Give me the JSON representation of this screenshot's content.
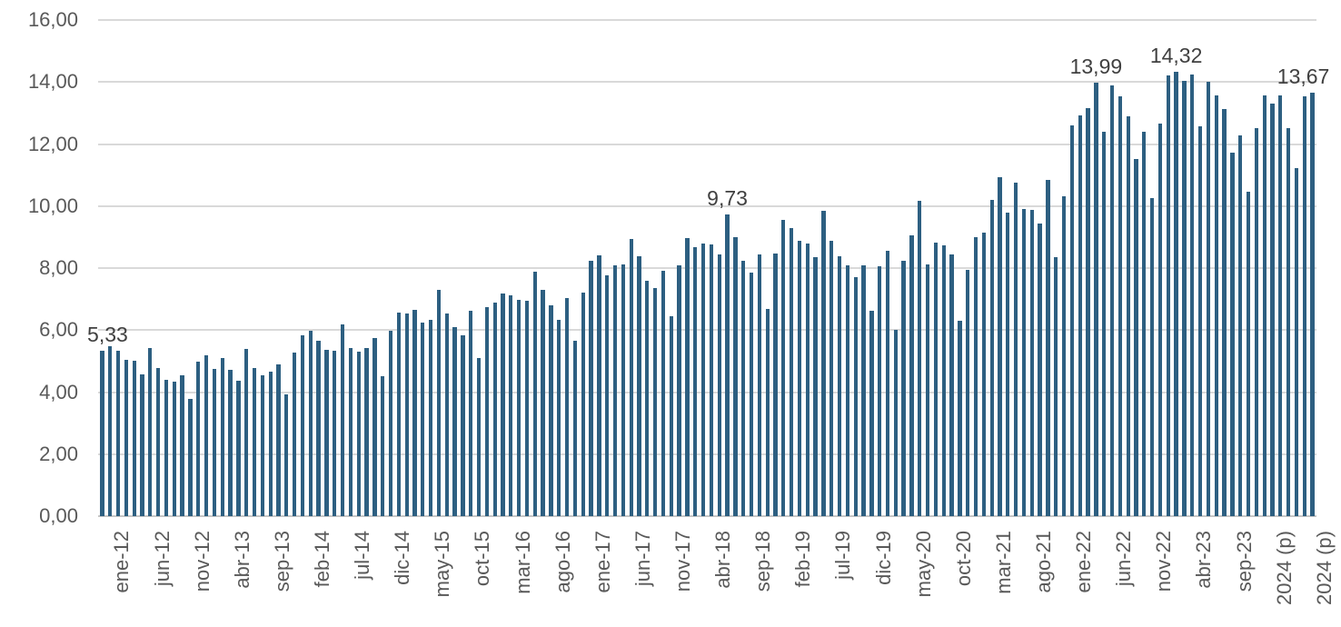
{
  "chart_data": {
    "type": "bar",
    "title": "",
    "xlabel": "",
    "ylabel": "",
    "ylim": [
      0,
      16
    ],
    "grid": true,
    "legend": "none",
    "y_ticks": [
      "0,00",
      "2,00",
      "4,00",
      "6,00",
      "8,00",
      "10,00",
      "12,00",
      "14,00",
      "16,00"
    ],
    "x_tick_step": 5,
    "x_tick_labels": [
      "ene-12",
      "jun-12",
      "nov-12",
      "abr-13",
      "sep-13",
      "feb-14",
      "jul-14",
      "dic-14",
      "may-15",
      "oct-15",
      "mar-16",
      "ago-16",
      "ene-17",
      "jun-17",
      "nov-17",
      "abr-18",
      "sep-18",
      "feb-19",
      "jul-19",
      "dic-19",
      "may-20",
      "oct-20",
      "mar-21",
      "ago-21",
      "ene-22",
      "jun-22",
      "nov-22",
      "abr-23",
      "sep-23",
      "2024 (p)",
      "2024 (p)"
    ],
    "values": [
      5.33,
      5.48,
      5.33,
      5.05,
      5.0,
      4.57,
      5.41,
      4.79,
      4.41,
      4.33,
      4.54,
      3.78,
      4.98,
      5.19,
      4.74,
      5.1,
      4.71,
      4.38,
      5.38,
      4.78,
      4.55,
      4.65,
      4.89,
      3.93,
      5.27,
      5.83,
      5.97,
      5.67,
      5.36,
      5.33,
      6.17,
      5.43,
      5.31,
      5.41,
      5.73,
      4.52,
      5.97,
      6.56,
      6.53,
      6.66,
      6.24,
      6.34,
      7.29,
      6.53,
      6.09,
      5.82,
      6.63,
      5.11,
      6.73,
      6.88,
      7.17,
      7.12,
      6.98,
      6.95,
      7.87,
      7.31,
      6.8,
      6.33,
      7.03,
      5.66,
      7.22,
      8.23,
      8.42,
      7.78,
      8.1,
      8.13,
      8.93,
      8.39,
      7.59,
      7.35,
      7.9,
      6.44,
      8.08,
      8.96,
      8.67,
      8.78,
      8.76,
      8.44,
      9.73,
      9.01,
      8.23,
      7.85,
      8.45,
      6.68,
      8.47,
      9.56,
      9.3,
      8.89,
      8.8,
      8.34,
      9.86,
      8.89,
      8.37,
      8.08,
      7.71,
      8.08,
      6.61,
      8.05,
      8.55,
      6.01,
      8.23,
      9.06,
      10.16,
      8.11,
      8.81,
      8.72,
      8.44,
      6.29,
      7.93,
      8.99,
      9.15,
      10.2,
      10.93,
      9.8,
      10.76,
      9.9,
      9.88,
      9.44,
      10.85,
      8.35,
      10.31,
      12.61,
      12.92,
      13.17,
      13.99,
      12.41,
      13.9,
      13.53,
      12.89,
      11.52,
      12.41,
      10.25,
      12.65,
      14.2,
      14.32,
      14.05,
      14.25,
      12.58,
      14.02,
      13.58,
      13.12,
      11.72,
      12.29,
      10.45,
      12.51,
      13.58,
      13.29,
      13.58,
      12.52,
      11.23,
      13.55,
      13.67
    ],
    "point_labels": [
      {
        "index": 0,
        "text": "5,33"
      },
      {
        "index": 78,
        "text": "9,73"
      },
      {
        "index": 124,
        "text": "13,99"
      },
      {
        "index": 134,
        "text": "14,32"
      },
      {
        "index": 151,
        "text": "13,67"
      }
    ],
    "colors": {
      "bar": "#2d5f81",
      "gridline": "#d9d9d9",
      "axis_line": "#c6c6c6",
      "axis_text": "#595959",
      "data_label_text": "#404040",
      "background": "#ffffff"
    }
  }
}
